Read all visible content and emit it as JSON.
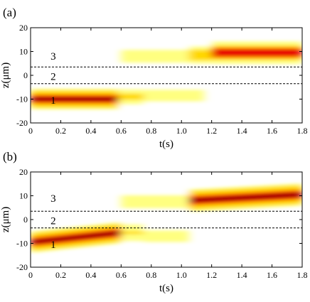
{
  "chart_data": [
    {
      "type": "heatmap",
      "panel_label": "(a)",
      "xlabel": "t(s)",
      "ylabel": "z(μm)",
      "xlim": [
        0,
        1.8
      ],
      "ylim": [
        -20,
        20
      ],
      "xticks": [
        0,
        0.2,
        0.4,
        0.6,
        0.8,
        1.0,
        1.2,
        1.4,
        1.6,
        1.8
      ],
      "xtick_labels": [
        "0",
        "0.2",
        "0.4",
        "0.6",
        "0.8",
        "1.0",
        "1.2",
        "1.4",
        "1.6",
        "1.8"
      ],
      "yticks": [
        -20,
        -10,
        0,
        10,
        20
      ],
      "ytick_labels": [
        "-20",
        "-10",
        "0",
        "10",
        "20"
      ],
      "boundaries_z": [
        3.5,
        -3.5
      ],
      "regions": [
        {
          "label": "3",
          "t": 0.15,
          "z": 8
        },
        {
          "label": "2",
          "t": 0.15,
          "z": -0.5
        },
        {
          "label": "1",
          "t": 0.15,
          "z": -10.5
        }
      ],
      "colormap": [
        "#ffffff",
        "#ffff80",
        "#ffd700",
        "#ff8c00",
        "#e60000",
        "#8b0000"
      ],
      "blobs": [
        {
          "t0": 0.0,
          "t1": 0.58,
          "z": -10,
          "peak": 0.95,
          "sigma_z": 2.2
        },
        {
          "t0": 0.58,
          "t1": 0.75,
          "z": -9,
          "peak": 0.45,
          "sigma_z": 2.0
        },
        {
          "t0": 0.75,
          "t1": 1.15,
          "z": -8.5,
          "peak": 0.25,
          "sigma_z": 2.0
        },
        {
          "t0": 0.6,
          "t1": 1.05,
          "z": 8,
          "peak": 0.25,
          "sigma_z": 2.2
        },
        {
          "t0": 1.05,
          "t1": 1.2,
          "z": 8.5,
          "peak": 0.5,
          "sigma_z": 2.3
        },
        {
          "t0": 1.2,
          "t1": 1.8,
          "z": 9.5,
          "peak": 0.9,
          "sigma_z": 2.4
        }
      ]
    },
    {
      "type": "heatmap",
      "panel_label": "(b)",
      "xlabel": "t(s)",
      "ylabel": "z(μm)",
      "xlim": [
        0,
        1.8
      ],
      "ylim": [
        -20,
        20
      ],
      "xticks": [
        0,
        0.2,
        0.4,
        0.6,
        0.8,
        1.0,
        1.2,
        1.4,
        1.6,
        1.8
      ],
      "xtick_labels": [
        "0",
        "0.2",
        "0.4",
        "0.6",
        "0.8",
        "1.0",
        "1.2",
        "1.4",
        "1.6",
        "1.8"
      ],
      "yticks": [
        -20,
        -10,
        0,
        10,
        20
      ],
      "ytick_labels": [
        "-20",
        "-10",
        "0",
        "10",
        "20"
      ],
      "boundaries_z": [
        3.5,
        -3.5
      ],
      "regions": [
        {
          "label": "3",
          "t": 0.15,
          "z": 9
        },
        {
          "label": "2",
          "t": 0.15,
          "z": -0.5
        },
        {
          "label": "1",
          "t": 0.15,
          "z": -10.5
        }
      ],
      "colormap": [
        "#ffffff",
        "#ffff80",
        "#ffd700",
        "#ff8c00",
        "#e60000",
        "#8b0000"
      ],
      "blobs": [
        {
          "t0": 0.0,
          "t1": 0.6,
          "z": -9.5,
          "z_end": -5.5,
          "peak": 1.0,
          "sigma_z": 2.3
        },
        {
          "t0": 0.6,
          "t1": 0.75,
          "z": -5.5,
          "z_end": -5.5,
          "peak": 0.35,
          "sigma_z": 2.2
        },
        {
          "t0": 0.75,
          "t1": 1.05,
          "z": -7,
          "z_end": -7,
          "peak": 0.25,
          "sigma_z": 2.0
        },
        {
          "t0": 0.6,
          "t1": 1.05,
          "z": 7.5,
          "z_end": 7.5,
          "peak": 0.3,
          "sigma_z": 2.2
        },
        {
          "t0": 1.05,
          "t1": 1.8,
          "z": 8,
          "z_end": 10.5,
          "peak": 1.0,
          "sigma_z": 2.4
        }
      ]
    }
  ]
}
